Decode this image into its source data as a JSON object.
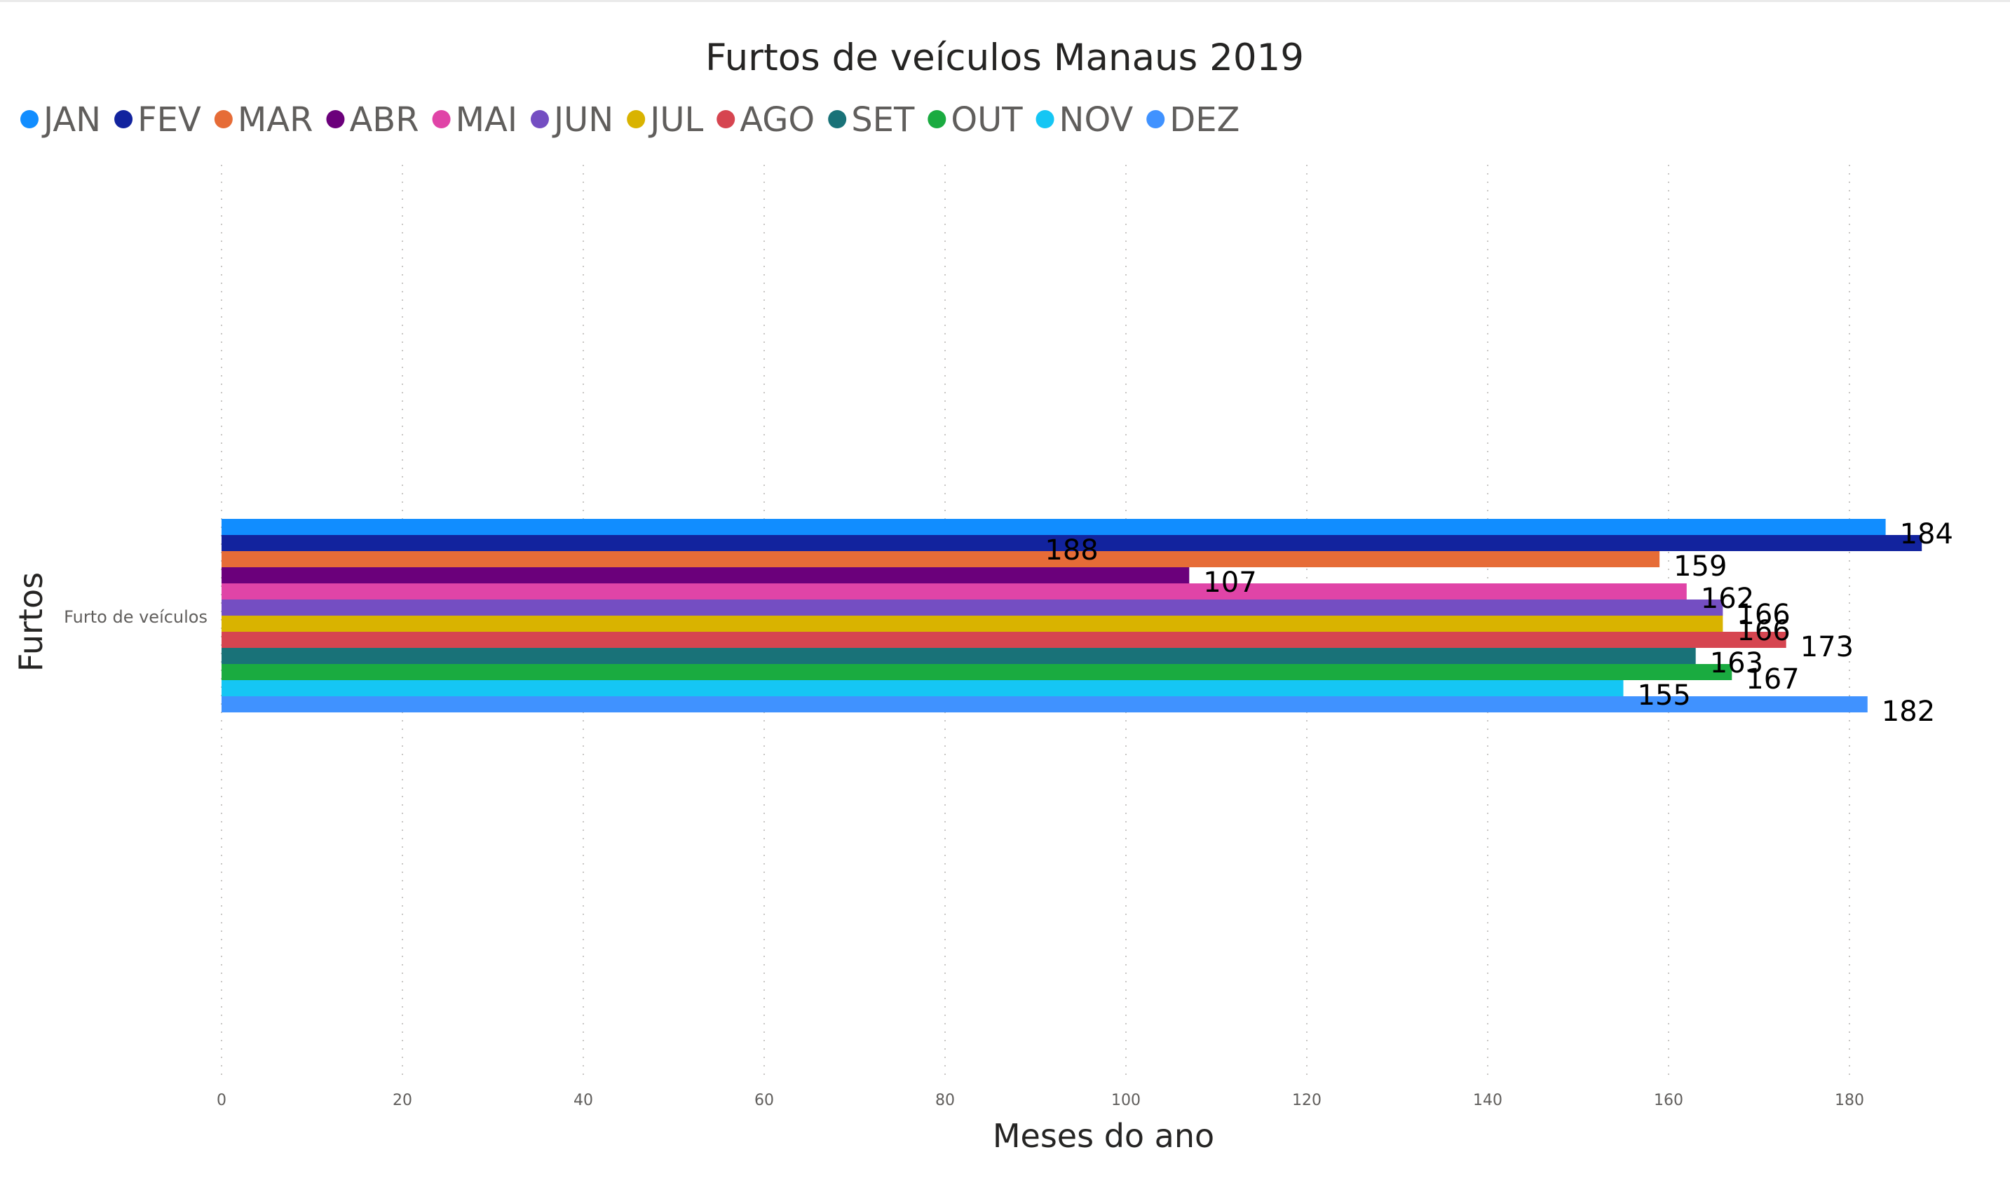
{
  "chart_data": {
    "type": "bar",
    "orientation": "horizontal",
    "title": "Furtos de veículos Manaus 2019",
    "xlabel": "Meses do ano",
    "ylabel": "Furtos",
    "categories": [
      "Furto de veículos"
    ],
    "xlim": [
      0,
      188
    ],
    "x_ticks": [
      0,
      20,
      40,
      60,
      80,
      100,
      120,
      140,
      160,
      180
    ],
    "grid": true,
    "legend_position": "top-left",
    "series": [
      {
        "name": "JAN",
        "values": [
          184
        ],
        "color": "#118DFF"
      },
      {
        "name": "FEV",
        "values": [
          188
        ],
        "color": "#12239E"
      },
      {
        "name": "MAR",
        "values": [
          159
        ],
        "color": "#E66C37"
      },
      {
        "name": "ABR",
        "values": [
          107
        ],
        "color": "#6B007B"
      },
      {
        "name": "MAI",
        "values": [
          162
        ],
        "color": "#E044A7"
      },
      {
        "name": "JUN",
        "values": [
          166
        ],
        "color": "#744EC2"
      },
      {
        "name": "JUL",
        "values": [
          166
        ],
        "color": "#D9B300"
      },
      {
        "name": "AGO",
        "values": [
          173
        ],
        "color": "#D64550"
      },
      {
        "name": "SET",
        "values": [
          163
        ],
        "color": "#197278"
      },
      {
        "name": "OUT",
        "values": [
          167
        ],
        "color": "#1AAB40"
      },
      {
        "name": "NOV",
        "values": [
          155
        ],
        "color": "#15C6F4"
      },
      {
        "name": "DEZ",
        "values": [
          182
        ],
        "color": "#4092FF"
      }
    ]
  }
}
